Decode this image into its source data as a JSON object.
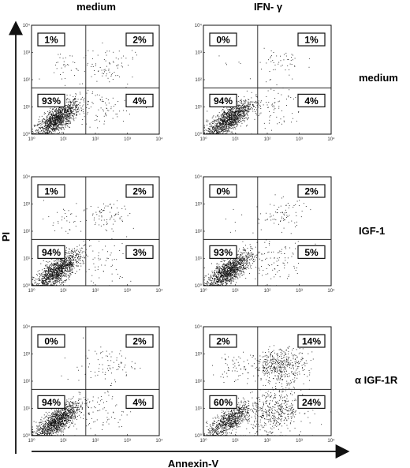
{
  "figure": {
    "column_headers": [
      "medium",
      "IFN- γ"
    ],
    "row_labels": [
      "medium",
      "IGF-1",
      "α IGF-1R"
    ],
    "y_axis_label": "PI",
    "x_axis_label": "Annexin-V"
  },
  "chart_data": {
    "type": "scatter",
    "panel_axes": {
      "x_scale": "log",
      "y_scale": "log",
      "xlim": [
        1,
        10000
      ],
      "ylim": [
        1,
        10000
      ],
      "tick_labels": [
        "10⁰",
        "10¹",
        "10²",
        "10³",
        "10⁴"
      ],
      "quadrant_gate_x": 50,
      "quadrant_gate_y": 50
    },
    "panels": [
      {
        "row": "medium",
        "column": "medium",
        "quadrants": {
          "upper_left": "1%",
          "upper_right": "2%",
          "lower_left": "93%",
          "lower_right": "4%"
        }
      },
      {
        "row": "medium",
        "column": "IFN- γ",
        "quadrants": {
          "upper_left": "0%",
          "upper_right": "1%",
          "lower_left": "94%",
          "lower_right": "4%"
        }
      },
      {
        "row": "IGF-1",
        "column": "medium",
        "quadrants": {
          "upper_left": "1%",
          "upper_right": "2%",
          "lower_left": "94%",
          "lower_right": "3%"
        }
      },
      {
        "row": "IGF-1",
        "column": "IFN- γ",
        "quadrants": {
          "upper_left": "0%",
          "upper_right": "2%",
          "lower_left": "93%",
          "lower_right": "5%"
        }
      },
      {
        "row": "α IGF-1R",
        "column": "medium",
        "quadrants": {
          "upper_left": "0%",
          "upper_right": "2%",
          "lower_left": "94%",
          "lower_right": "4%"
        }
      },
      {
        "row": "α IGF-1R",
        "column": "IFN- γ",
        "quadrants": {
          "upper_left": "2%",
          "upper_right": "14%",
          "lower_left": "60%",
          "lower_right": "24%"
        }
      }
    ]
  }
}
